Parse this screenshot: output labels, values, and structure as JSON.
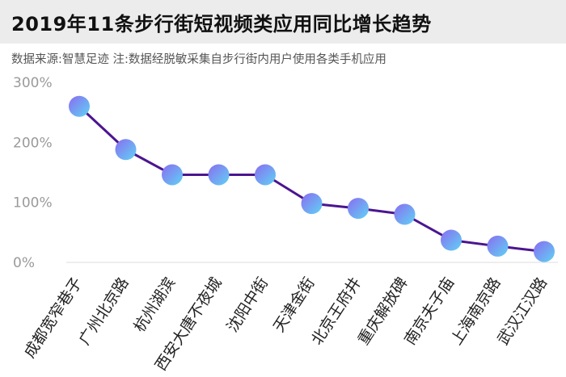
{
  "header": {
    "title": "2019年11条步行街短视频类应用同比增长趋势",
    "subtitle": "数据来源:智慧足迹  注:数据经脱敏采集自步行街内用户使用各类手机应用"
  },
  "colors": {
    "line": "#4b1590",
    "marker_top": "#8a6cf0",
    "marker_bottom": "#5fd3f5",
    "title_bar": "#ececec",
    "grid": "#dddddd"
  },
  "chart_data": {
    "type": "line",
    "title": "2019年11条步行街短视频类应用同比增长趋势",
    "categories": [
      "成都宽窄巷子",
      "广州北京路",
      "杭州湖滨",
      "西安大唐不夜城",
      "沈阳中街",
      "天津金街",
      "北京王府井",
      "重庆解放碑",
      "南京夫子庙",
      "上海南京路",
      "武汉江汉路"
    ],
    "values": [
      260,
      188,
      146,
      146,
      146,
      98,
      90,
      80,
      37,
      27,
      18
    ],
    "yticks": [
      "0%",
      "100%",
      "200%",
      "300%"
    ],
    "ylim": [
      0,
      300
    ],
    "unit": "%",
    "xlabel": "",
    "ylabel": "",
    "grid": false
  }
}
